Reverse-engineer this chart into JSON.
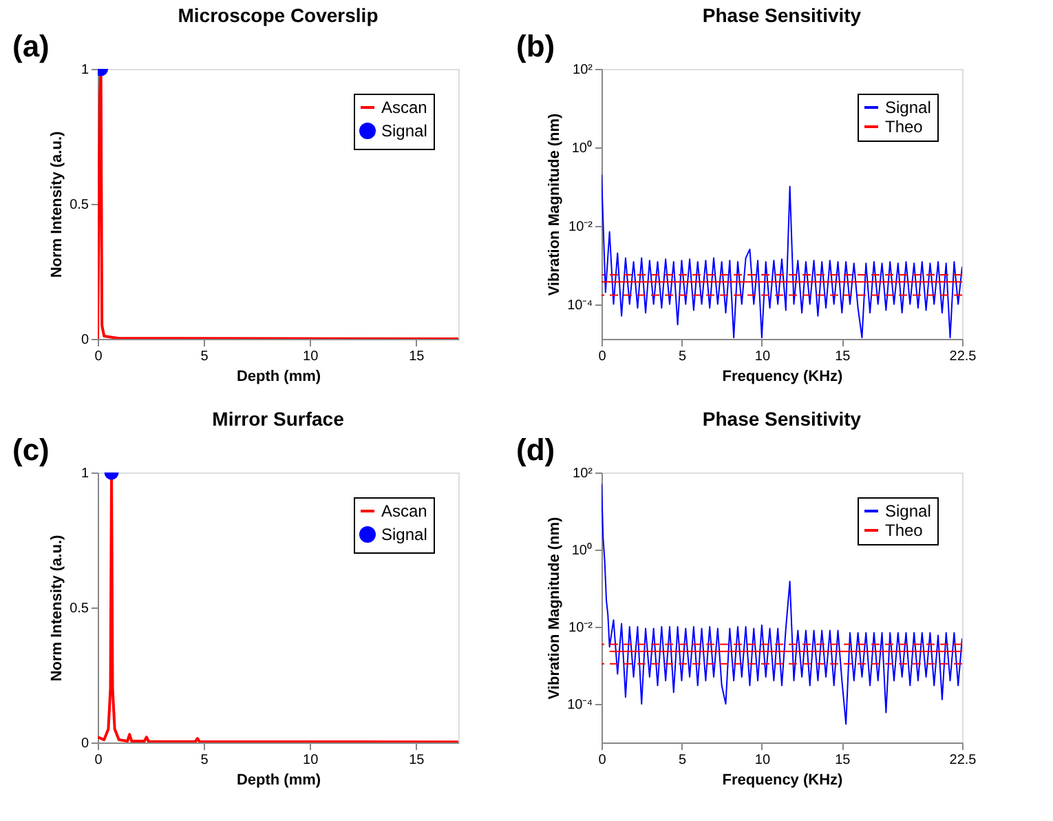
{
  "chart_data": [
    {
      "type": "line",
      "title": "Microscope Coverslip",
      "xlabel": "Depth (mm)",
      "ylabel": "Norm Intensity (a.u.)",
      "annotations": [
        "(a)"
      ],
      "xlim": [
        0,
        17
      ],
      "xticks": [
        0,
        5,
        10,
        15
      ],
      "ylim": [
        0,
        1
      ],
      "yticks": [
        0,
        0.5,
        1
      ],
      "grid": false,
      "legend": "top right",
      "series": [
        {
          "name": "Ascan",
          "color": "#ff0000",
          "x": [
            0,
            0.1,
            0.15,
            0.2,
            0.3,
            1,
            17
          ],
          "values": [
            0,
            0.9,
            1,
            0.05,
            0.01,
            0.002,
            0
          ]
        },
        {
          "name": "Signal",
          "color": "#0000ff",
          "type": "scatter",
          "marker": "circle",
          "x": [
            0.15
          ],
          "values": [
            1
          ]
        }
      ]
    },
    {
      "type": "line",
      "title": "Phase Sensitivity",
      "xlabel": "Frequency (KHz)",
      "ylabel": "Vibration Magnitude (nm)",
      "annotations": [
        "(b)"
      ],
      "xlim": [
        0,
        22.5
      ],
      "xticks": [
        0,
        5,
        10,
        15,
        22.5
      ],
      "ylim": [
        1.3e-05,
        100
      ],
      "yticks": [
        {
          "value": 100,
          "label": "10²"
        },
        {
          "value": 1,
          "label": "10⁰"
        },
        {
          "value": 0.01,
          "label": "10⁻²"
        },
        {
          "value": 0.0001,
          "label": "10⁻⁴"
        }
      ],
      "log": true,
      "grid": false,
      "legend": "top right",
      "series": [
        {
          "name": "Signal",
          "color": "#0000ff",
          "x": [
            0,
            0.25,
            0.5,
            0.75,
            1,
            1.25,
            1.5,
            1.75,
            2,
            2.25,
            2.5,
            2.75,
            3,
            3.25,
            3.5,
            3.75,
            4,
            4.25,
            4.5,
            4.75,
            5,
            5.25,
            5.5,
            5.75,
            6,
            6.25,
            6.5,
            6.75,
            7,
            7.25,
            7.5,
            7.75,
            8,
            8.25,
            8.5,
            8.75,
            9,
            9.25,
            9.5,
            9.75,
            10,
            10.25,
            10.5,
            10.75,
            11,
            11.25,
            11.5,
            11.75,
            12,
            12.25,
            12.5,
            12.75,
            13,
            13.25,
            13.5,
            13.75,
            14,
            14.25,
            14.5,
            14.75,
            15,
            15.25,
            15.5,
            15.75,
            16,
            16.25,
            16.5,
            16.75,
            17,
            17.25,
            17.5,
            17.75,
            18,
            18.25,
            18.5,
            18.75,
            19,
            19.25,
            19.5,
            19.75,
            20,
            20.25,
            20.5,
            20.75,
            21,
            21.25,
            21.5,
            21.75,
            22,
            22.25,
            22.5
          ],
          "values": [
            0.2,
            0.0002,
            0.007,
            0.0001,
            0.002,
            5e-05,
            0.0015,
            0.0001,
            0.0012,
            8e-05,
            0.0015,
            6e-05,
            0.0013,
            0.0001,
            0.0012,
            8e-05,
            0.0014,
            0.0001,
            0.0012,
            3e-05,
            0.0013,
            0.0001,
            0.0014,
            7e-05,
            0.0012,
            0.0001,
            0.0013,
            8e-05,
            0.0015,
            0.0001,
            0.0012,
            6e-05,
            0.0013,
            1.4e-05,
            0.0012,
            0.0001,
            0.0015,
            0.0025,
            0.0001,
            0.0013,
            1.4e-05,
            0.0012,
            8e-05,
            0.0013,
            0.0001,
            0.0014,
            7e-05,
            0.1,
            0.0001,
            0.0013,
            6e-05,
            0.0012,
            0.0001,
            0.0013,
            5e-05,
            0.0012,
            8e-05,
            0.0013,
            0.0001,
            0.0012,
            6e-05,
            0.0012,
            0.0001,
            0.0011,
            8e-05,
            1.4e-05,
            0.0011,
            6e-05,
            0.0012,
            0.0001,
            0.0011,
            7e-05,
            0.0012,
            0.0001,
            0.0011,
            6e-05,
            0.0012,
            0.0001,
            0.0011,
            8e-05,
            0.0012,
            7e-05,
            0.0011,
            0.0001,
            0.0012,
            6e-05,
            0.0011,
            1.4e-05,
            0.0012,
            0.0001,
            0.0009
          ]
        },
        {
          "name": "Theo",
          "color": "#ff0000",
          "x": [
            0,
            22.5
          ],
          "values": [
            0.00037,
            0.00037
          ]
        }
      ],
      "ref_lines": [
        {
          "axis": "y",
          "value": 0.00056,
          "color": "#ff0000",
          "line_style": "dashed"
        },
        {
          "axis": "y",
          "value": 0.00017,
          "color": "#ff0000",
          "line_style": "dashed"
        }
      ]
    },
    {
      "type": "line",
      "title": "Mirror Surface",
      "xlabel": "Depth (mm)",
      "ylabel": "Norm Intensity (a.u.)",
      "annotations": [
        "(c)"
      ],
      "xlim": [
        0,
        17
      ],
      "xticks": [
        0,
        5,
        10,
        15
      ],
      "ylim": [
        0,
        1
      ],
      "yticks": [
        0,
        0.5,
        1
      ],
      "grid": false,
      "legend": "top right",
      "series": [
        {
          "name": "Ascan",
          "color": "#ff0000",
          "x": [
            0,
            0.3,
            0.5,
            0.6,
            0.65,
            0.7,
            0.8,
            1,
            1.4,
            1.5,
            1.6,
            2.2,
            2.3,
            2.4,
            4.6,
            4.7,
            4.8,
            17
          ],
          "values": [
            0.02,
            0.01,
            0.05,
            0.2,
            1,
            0.2,
            0.05,
            0.01,
            0.005,
            0.03,
            0.005,
            0.005,
            0.02,
            0.003,
            0.003,
            0.015,
            0.003,
            0.002
          ]
        },
        {
          "name": "Signal",
          "color": "#0000ff",
          "type": "scatter",
          "marker": "circle",
          "x": [
            0.65
          ],
          "values": [
            1
          ]
        }
      ]
    },
    {
      "type": "line",
      "title": "Phase Sensitivity",
      "xlabel": "Frequency (KHz)",
      "ylabel": "Vibration Magnitude (nm)",
      "annotations": [
        "(d)"
      ],
      "xlim": [
        0,
        22.5
      ],
      "xticks": [
        0,
        5,
        10,
        15,
        22.5
      ],
      "ylim": [
        1e-05,
        100
      ],
      "yticks": [
        {
          "value": 100,
          "label": "10²"
        },
        {
          "value": 1,
          "label": "10⁰"
        },
        {
          "value": 0.01,
          "label": "10⁻²"
        },
        {
          "value": 0.0001,
          "label": "10⁻⁴"
        }
      ],
      "log": true,
      "grid": false,
      "legend": "top right",
      "series": [
        {
          "name": "Signal",
          "color": "#0000ff",
          "x": [
            0,
            0.1,
            0.2,
            0.3,
            0.4,
            0.5,
            0.75,
            1,
            1.25,
            1.5,
            1.75,
            2,
            2.25,
            2.5,
            2.75,
            3,
            3.25,
            3.5,
            3.75,
            4,
            4.25,
            4.5,
            4.75,
            5,
            5.25,
            5.5,
            5.75,
            6,
            6.25,
            6.5,
            6.75,
            7,
            7.25,
            7.5,
            7.75,
            8,
            8.25,
            8.5,
            8.75,
            9,
            9.25,
            9.5,
            9.75,
            10,
            10.25,
            10.5,
            10.75,
            11,
            11.25,
            11.5,
            11.75,
            12,
            12.25,
            12.5,
            12.75,
            13,
            13.25,
            13.5,
            13.75,
            14,
            14.25,
            14.5,
            14.75,
            15,
            15.25,
            15.5,
            15.75,
            16,
            16.25,
            16.5,
            16.75,
            17,
            17.25,
            17.5,
            17.75,
            18,
            18.25,
            18.5,
            18.75,
            19,
            19.25,
            19.5,
            19.75,
            20,
            20.25,
            20.5,
            20.75,
            21,
            21.25,
            21.5,
            21.75,
            22,
            22.25,
            22.5
          ],
          "values": [
            50,
            2,
            0.5,
            0.05,
            0.02,
            0.003,
            0.015,
            0.0006,
            0.012,
            0.00015,
            0.01,
            0.0005,
            0.01,
            0.0001,
            0.009,
            0.0005,
            0.009,
            0.0003,
            0.01,
            0.0004,
            0.01,
            0.0002,
            0.01,
            0.0004,
            0.009,
            0.0005,
            0.01,
            0.0003,
            0.009,
            0.0004,
            0.01,
            0.0005,
            0.009,
            0.0003,
            0.0001,
            0.009,
            0.0004,
            0.01,
            0.0005,
            0.01,
            0.0003,
            0.009,
            0.0004,
            0.011,
            0.0005,
            0.009,
            0.0004,
            0.009,
            0.0003,
            0.009,
            0.15,
            0.0004,
            0.008,
            0.0005,
            0.008,
            0.0003,
            0.008,
            0.0004,
            0.008,
            0.0005,
            0.008,
            0.0003,
            0.008,
            0.0004,
            3e-05,
            0.007,
            0.0004,
            0.007,
            0.0005,
            0.007,
            0.0003,
            0.007,
            0.0004,
            0.007,
            6e-05,
            0.007,
            0.0004,
            0.007,
            0.0005,
            0.007,
            0.0003,
            0.007,
            0.0004,
            0.007,
            0.0005,
            0.007,
            0.0003,
            0.006,
            0.00013,
            0.007,
            0.0004,
            0.007,
            0.0003,
            0.005
          ]
        },
        {
          "name": "Theo",
          "color": "#ff0000",
          "x": [
            0.5,
            22.5
          ],
          "values": [
            0.0023,
            0.0023
          ]
        }
      ],
      "ref_lines": [
        {
          "axis": "y",
          "value": 0.0035,
          "color": "#ff0000",
          "line_style": "dashed"
        },
        {
          "axis": "y",
          "value": 0.0011,
          "color": "#ff0000",
          "line_style": "dashed"
        }
      ]
    }
  ]
}
